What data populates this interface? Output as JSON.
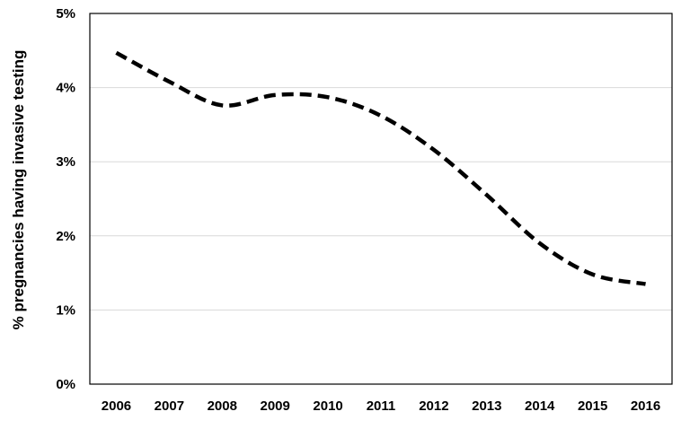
{
  "chart_data": {
    "type": "line",
    "title": "",
    "xlabel": "",
    "ylabel": "% pregnancies having invasive testing",
    "categories": [
      "2006",
      "2007",
      "2008",
      "2009",
      "2010",
      "2011",
      "2012",
      "2013",
      "2014",
      "2015",
      "2016"
    ],
    "series": [
      {
        "values": [
          4.47,
          4.08,
          3.76,
          3.9,
          3.87,
          3.62,
          3.16,
          2.55,
          1.9,
          1.48,
          1.35
        ]
      }
    ],
    "ylim": [
      0,
      5
    ],
    "yticks": [
      0,
      1,
      2,
      3,
      4,
      5
    ],
    "ytick_labels": [
      "0%",
      "1%",
      "2%",
      "3%",
      "4%",
      "5%"
    ],
    "grid": "horizontal",
    "line_style": "dashed",
    "line_color": "#000000",
    "grid_color": "#d9d9d9"
  }
}
